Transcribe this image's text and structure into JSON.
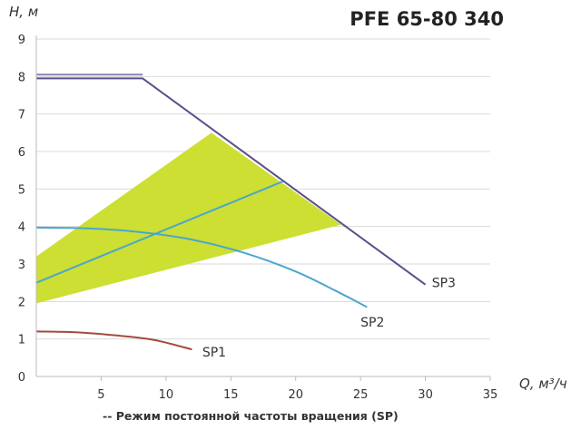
{
  "chart_data": {
    "type": "line",
    "title": "PFE 65-80 340",
    "xlabel": "Q, м³/ч",
    "ylabel": "H, м",
    "xlim": [
      0,
      35
    ],
    "ylim": [
      0,
      9
    ],
    "xticks": [
      5,
      10,
      15,
      20,
      25,
      30,
      35
    ],
    "yticks": [
      0,
      1,
      2,
      3,
      4,
      5,
      6,
      7,
      8,
      9
    ],
    "grid": "horizontal",
    "footnote": "-- Режим постоянной частоты вращения (SP)",
    "colors": {
      "grid": "#d9d9d9",
      "axis": "#bbbbbb",
      "region": "#ccdf32",
      "max_curve": "#8c83b8",
      "SP3": "#5a4f8a",
      "SP2": "#4aa6cf",
      "SP1": "#a44a3f"
    },
    "region": {
      "name": "",
      "points": [
        [
          0,
          1.95
        ],
        [
          23.5,
          4.05
        ],
        [
          13.5,
          6.5
        ],
        [
          0,
          3.2
        ]
      ]
    },
    "series": [
      {
        "label": "",
        "key": "max_curve",
        "points": [
          [
            0,
            8.05
          ],
          [
            8.2,
            8.05
          ]
        ]
      },
      {
        "label": "SP3",
        "key": "SP3",
        "points": [
          [
            0,
            7.95
          ],
          [
            8.2,
            7.95
          ],
          [
            30,
            2.45
          ]
        ]
      },
      {
        "label": "",
        "key": "SP2",
        "points": [
          [
            0,
            2.5
          ],
          [
            19,
            5.2
          ]
        ]
      },
      {
        "label": "SP2",
        "key": "SP2",
        "points": [
          [
            0,
            3.97
          ],
          [
            4,
            3.95
          ],
          [
            8,
            3.85
          ],
          [
            12,
            3.65
          ],
          [
            16,
            3.3
          ],
          [
            20,
            2.8
          ],
          [
            23,
            2.3
          ],
          [
            25.5,
            1.85
          ]
        ]
      },
      {
        "label": "SP1",
        "key": "SP1",
        "points": [
          [
            0,
            1.2
          ],
          [
            3,
            1.18
          ],
          [
            6,
            1.1
          ],
          [
            9,
            0.98
          ],
          [
            12,
            0.72
          ]
        ]
      }
    ],
    "series_labels": [
      {
        "text": "SP3",
        "x": 30.5,
        "y": 2.5
      },
      {
        "text": "SP2",
        "x": 25,
        "y": 1.45
      },
      {
        "text": "SP1",
        "x": 12.8,
        "y": 0.65
      }
    ]
  }
}
